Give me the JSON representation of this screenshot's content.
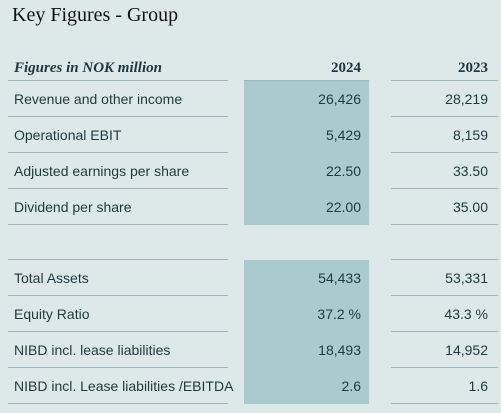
{
  "title": "Key Figures - Group",
  "header": {
    "label": "Figures in NOK million",
    "year1": "2024",
    "year2": "2023"
  },
  "section1": [
    {
      "label": "Revenue and other income",
      "v2024": "26,426",
      "v2023": "28,219"
    },
    {
      "label": "Operational EBIT",
      "v2024": "5,429",
      "v2023": "8,159"
    },
    {
      "label": "Adjusted earnings per share",
      "v2024": "22.50",
      "v2023": "33.50"
    },
    {
      "label": "Dividend per share",
      "v2024": "22.00",
      "v2023": "35.00"
    }
  ],
  "section2": [
    {
      "label": "Total Assets",
      "v2024": "54,433",
      "v2023": "53,331"
    },
    {
      "label": "Equity Ratio",
      "v2024": "37.2 %",
      "v2023": "43.3 %"
    },
    {
      "label": "NIBD incl. lease liabilities",
      "v2024": "18,493",
      "v2023": "14,952"
    },
    {
      "label": "NIBD incl. Lease liabilities /EBITDA",
      "v2024": "2.6",
      "v2023": "1.6"
    }
  ],
  "colors": {
    "background": "#dde9e9",
    "highlight": "#a9cace",
    "rule": "#9bb5b8"
  }
}
